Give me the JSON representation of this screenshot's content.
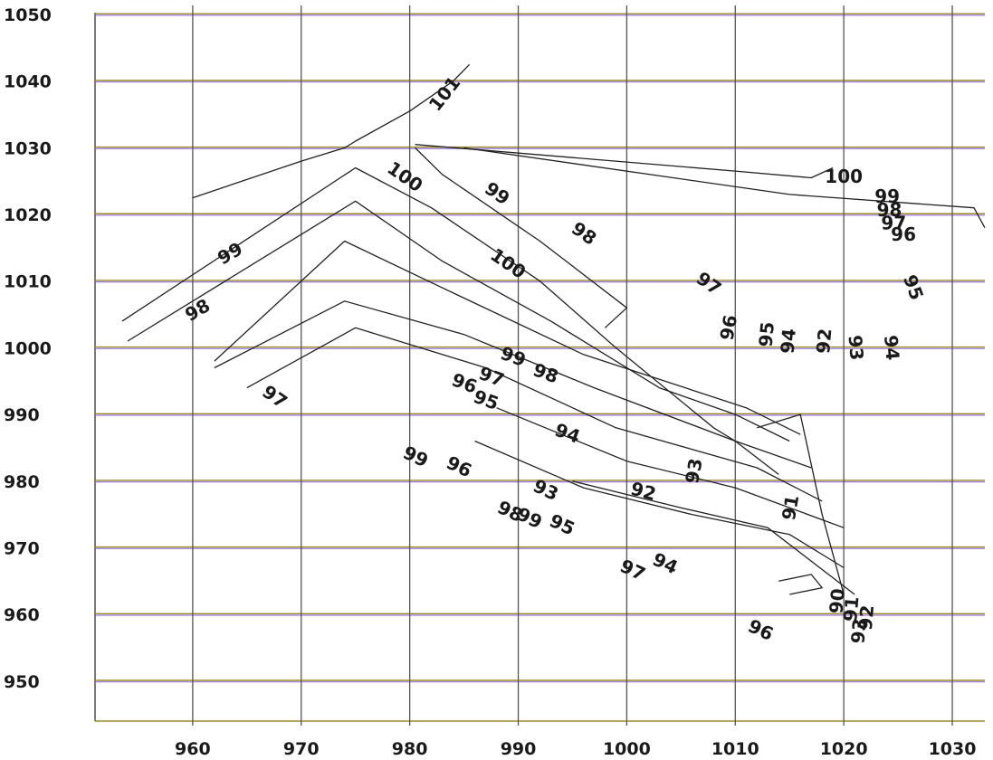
{
  "chart_data": {
    "type": "contour",
    "title": "",
    "xlabel": "",
    "ylabel": "",
    "xlim": [
      951,
      1033
    ],
    "ylim": [
      944,
      1050
    ],
    "x_ticks": [
      960,
      970,
      980,
      990,
      1000,
      1010,
      1020,
      1030
    ],
    "y_ticks": [
      950,
      960,
      970,
      980,
      990,
      1000,
      1010,
      1020,
      1030,
      1040,
      1050
    ],
    "grid": true,
    "levels": [
      90,
      91,
      92,
      93,
      94,
      95,
      96,
      97,
      98,
      99,
      100,
      101
    ],
    "contours": [
      {
        "level": 101,
        "points": [
          [
            960,
            1022.5
          ],
          [
            970,
            1028
          ],
          [
            974,
            1030
          ],
          [
            975,
            1031
          ],
          [
            980,
            1035.5
          ],
          [
            984,
            1040
          ],
          [
            985.5,
            1042.5
          ]
        ]
      },
      {
        "level": 100,
        "points": [
          [
            980.5,
            1030.5
          ],
          [
            1010,
            1026.5
          ],
          [
            1017,
            1025.5
          ],
          [
            1019,
            1027
          ]
        ]
      },
      {
        "level": 100,
        "points": [
          [
            980.5,
            1030
          ],
          [
            983,
            1026
          ],
          [
            992,
            1016
          ],
          [
            1000,
            1006
          ],
          [
            998,
            1003
          ]
        ]
      },
      {
        "level": 99,
        "points": [
          [
            953.5,
            1004
          ],
          [
            975,
            1027
          ],
          [
            982,
            1021
          ],
          [
            992,
            1010
          ],
          [
            999,
            1000
          ],
          [
            1008,
            988
          ],
          [
            1010,
            986
          ],
          [
            1014,
            981
          ]
        ]
      },
      {
        "level": 99,
        "points": [
          [
            985,
            1030
          ],
          [
            1015,
            1023
          ],
          [
            1032,
            1021
          ],
          [
            1033,
            1018
          ]
        ]
      },
      {
        "level": 98,
        "points": [
          [
            954,
            1001
          ],
          [
            975,
            1022
          ],
          [
            983,
            1013
          ],
          [
            993,
            1004
          ],
          [
            1003,
            994
          ],
          [
            1010,
            990
          ],
          [
            1015,
            986
          ]
        ]
      },
      {
        "level": 97,
        "points": [
          [
            962,
            998
          ],
          [
            974,
            1016
          ],
          [
            983,
            1009
          ],
          [
            996,
            999
          ],
          [
            1011,
            991
          ],
          [
            1016,
            987
          ]
        ]
      },
      {
        "level": 96,
        "points": [
          [
            962,
            997
          ],
          [
            974,
            1007
          ],
          [
            985,
            1002
          ],
          [
            997,
            994
          ],
          [
            1010,
            986
          ],
          [
            1017,
            982
          ]
        ]
      },
      {
        "level": 95,
        "points": [
          [
            965,
            994
          ],
          [
            975,
            1003
          ],
          [
            987,
            997
          ],
          [
            999,
            988
          ],
          [
            1012,
            982
          ],
          [
            1018,
            977
          ]
        ]
      },
      {
        "level": 94,
        "points": [
          [
            988,
            991
          ],
          [
            1000,
            983
          ],
          [
            1010,
            979
          ],
          [
            1020,
            973
          ]
        ]
      },
      {
        "level": 93,
        "points": [
          [
            986,
            986
          ],
          [
            996,
            979
          ],
          [
            1006,
            975
          ],
          [
            1015,
            972
          ],
          [
            1020,
            967
          ]
        ]
      },
      {
        "level": 92,
        "points": [
          [
            995,
            980
          ],
          [
            1005,
            976
          ],
          [
            1013,
            973
          ],
          [
            1021,
            963
          ]
        ]
      },
      {
        "level": 91,
        "points": [
          [
            1012,
            988
          ],
          [
            1016,
            990
          ],
          [
            1018,
            975
          ],
          [
            1020,
            963
          ]
        ]
      },
      {
        "level": 90,
        "points": [
          [
            1014,
            965
          ],
          [
            1017,
            966
          ],
          [
            1018,
            964
          ],
          [
            1015,
            963
          ]
        ]
      }
    ],
    "contour_labels": [
      {
        "text": "101",
        "x": 983.3,
        "y": 1038,
        "angle": -52
      },
      {
        "text": "100",
        "x": 979.5,
        "y": 1025.5,
        "angle": 35
      },
      {
        "text": "99",
        "x": 988,
        "y": 1023,
        "angle": 35
      },
      {
        "text": "98",
        "x": 996,
        "y": 1017,
        "angle": 35
      },
      {
        "text": "100",
        "x": 989,
        "y": 1012.5,
        "angle": 35
      },
      {
        "text": "97",
        "x": 1007.5,
        "y": 1009.5,
        "angle": 35
      },
      {
        "text": "96",
        "x": 1009.5,
        "y": 1003,
        "angle": -80
      },
      {
        "text": "95",
        "x": 1013,
        "y": 1002,
        "angle": -85
      },
      {
        "text": "94",
        "x": 1015,
        "y": 1001,
        "angle": -85
      },
      {
        "text": "92",
        "x": 1018.3,
        "y": 1001,
        "angle": -85
      },
      {
        "text": "93",
        "x": 1021,
        "y": 1000,
        "angle": 85
      },
      {
        "text": "94",
        "x": 1024.3,
        "y": 1000,
        "angle": 85
      },
      {
        "text": "100",
        "x": 1020,
        "y": 1025.5,
        "angle": 0
      },
      {
        "text": "99",
        "x": 1024,
        "y": 1022.5,
        "angle": 0
      },
      {
        "text": "98",
        "x": 1024.2,
        "y": 1020.5,
        "angle": 0
      },
      {
        "text": "97",
        "x": 1024.6,
        "y": 1018.5,
        "angle": 0
      },
      {
        "text": "96",
        "x": 1025.5,
        "y": 1016.8,
        "angle": 0
      },
      {
        "text": "95",
        "x": 1026.3,
        "y": 1009,
        "angle": 70
      },
      {
        "text": "99",
        "x": 963.5,
        "y": 1014,
        "angle": -30
      },
      {
        "text": "98",
        "x": 960.5,
        "y": 1005.5,
        "angle": -30
      },
      {
        "text": "97",
        "x": 967.5,
        "y": 992.5,
        "angle": 35
      },
      {
        "text": "99",
        "x": 989.5,
        "y": 998.5,
        "angle": 20
      },
      {
        "text": "97",
        "x": 987.5,
        "y": 995.5,
        "angle": 20
      },
      {
        "text": "98",
        "x": 992.5,
        "y": 996,
        "angle": 20
      },
      {
        "text": "96",
        "x": 985,
        "y": 994.5,
        "angle": 20
      },
      {
        "text": "95",
        "x": 987,
        "y": 992,
        "angle": 20
      },
      {
        "text": "94",
        "x": 994.5,
        "y": 987,
        "angle": 20
      },
      {
        "text": "93",
        "x": 1006.3,
        "y": 981.5,
        "angle": -80
      },
      {
        "text": "99",
        "x": 980.5,
        "y": 983.5,
        "angle": 25
      },
      {
        "text": "96",
        "x": 984.5,
        "y": 982,
        "angle": 25
      },
      {
        "text": "93",
        "x": 992.5,
        "y": 978.5,
        "angle": 25
      },
      {
        "text": "92",
        "x": 1001.5,
        "y": 978.3,
        "angle": 15
      },
      {
        "text": "98",
        "x": 989.2,
        "y": 975.3,
        "angle": 25
      },
      {
        "text": "99",
        "x": 991,
        "y": 974.3,
        "angle": 25
      },
      {
        "text": "95",
        "x": 994,
        "y": 973.3,
        "angle": 25
      },
      {
        "text": "91",
        "x": 1015.2,
        "y": 976,
        "angle": -80
      },
      {
        "text": "94",
        "x": 1003.5,
        "y": 967.5,
        "angle": 25
      },
      {
        "text": "97",
        "x": 1000.5,
        "y": 966.5,
        "angle": 25
      },
      {
        "text": "90",
        "x": 1019.5,
        "y": 962,
        "angle": -85
      },
      {
        "text": "91",
        "x": 1020.8,
        "y": 960.8,
        "angle": -85
      },
      {
        "text": "92",
        "x": 1022.2,
        "y": 959.5,
        "angle": -85
      },
      {
        "text": "93",
        "x": 1021.5,
        "y": 957.5,
        "angle": -85
      },
      {
        "text": "96",
        "x": 1012.3,
        "y": 957.5,
        "angle": 25
      }
    ]
  }
}
